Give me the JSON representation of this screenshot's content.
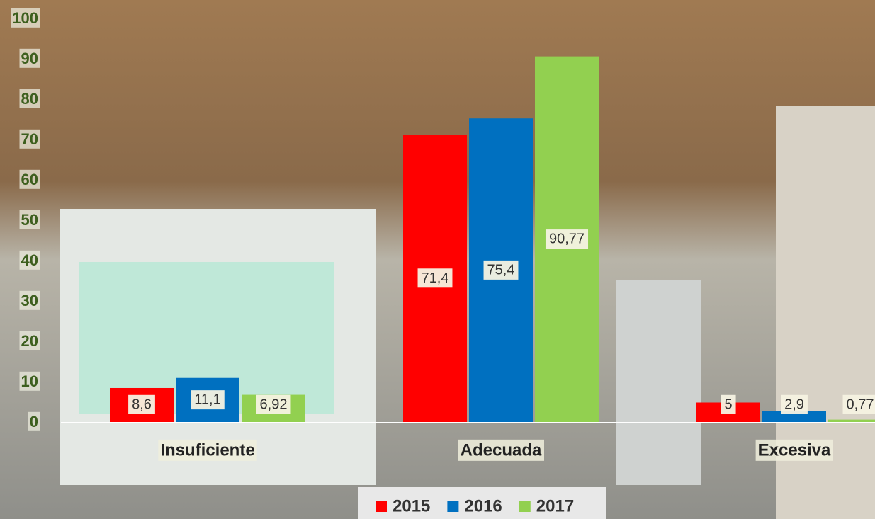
{
  "chart_data": {
    "type": "bar",
    "categories": [
      "Insuficiente",
      "Adecuada",
      "Excesiva"
    ],
    "series": [
      {
        "name": "2015",
        "color": "#ff0000",
        "values": [
          8.6,
          71.4,
          5
        ],
        "value_labels": [
          "8,6",
          "71,4",
          "5"
        ]
      },
      {
        "name": "2016",
        "color": "#0070c0",
        "values": [
          11.1,
          75.4,
          2.9
        ],
        "value_labels": [
          "11,1",
          "75,4",
          "2,9"
        ]
      },
      {
        "name": "2017",
        "color": "#92d050",
        "values": [
          6.92,
          90.77,
          0.77
        ],
        "value_labels": [
          "6,92",
          "90,77",
          "0,77"
        ]
      }
    ],
    "ylim": [
      0,
      100
    ],
    "yticks": [
      0,
      10,
      20,
      30,
      40,
      50,
      60,
      70,
      80,
      90,
      100
    ],
    "grid": false,
    "legend": "bottom"
  }
}
